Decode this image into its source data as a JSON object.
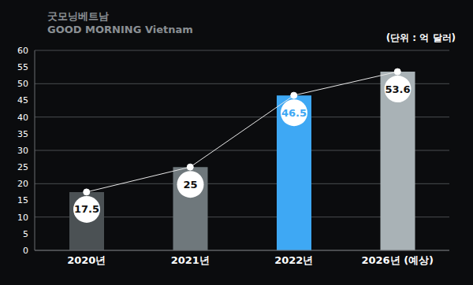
{
  "chart_data": {
    "type": "bar",
    "subtitle": "(단위 : 억 달러)",
    "annotations": [
      "굿모닝베트남",
      "GOOD MORNING Vietnam"
    ],
    "categories": [
      "2020년",
      "2021년",
      "2022년",
      "2026년 (예상)"
    ],
    "values": [
      17.5,
      25,
      46.5,
      53.6
    ],
    "colors": [
      "#4b5154",
      "#6f787c",
      "#3ea8f4",
      "#a9b2b6"
    ],
    "ylim": [
      0,
      60
    ],
    "yticks": [
      0,
      5,
      10,
      15,
      20,
      25,
      30,
      35,
      40,
      45,
      50,
      55,
      60
    ],
    "grid": true,
    "data_labels": true
  }
}
